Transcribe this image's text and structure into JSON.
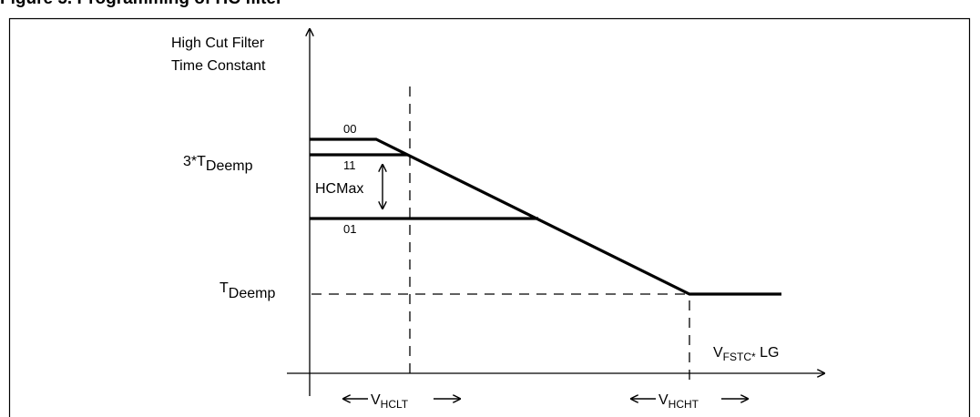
{
  "figure": {
    "title": "Figure 5.     Programming of HC filter"
  },
  "axes": {
    "y_label_line1": "High Cut Filter",
    "y_label_line2": "Time Constant",
    "x_label": {
      "main": "V",
      "sub": "FSTC*",
      "suffix": " LG"
    }
  },
  "levels": {
    "high": {
      "prefix": "3*T",
      "sub": "Deemp"
    },
    "low": {
      "prefix": "T",
      "sub": "Deemp"
    }
  },
  "curves": {
    "c00": "00",
    "c11": "11",
    "c01": "01"
  },
  "annotations": {
    "hcmax": "HCMax"
  },
  "thresholds": {
    "hclt": {
      "main": "V",
      "sub": "HCLT"
    },
    "hcht": {
      "main": "V",
      "sub": "HCHT"
    }
  }
}
